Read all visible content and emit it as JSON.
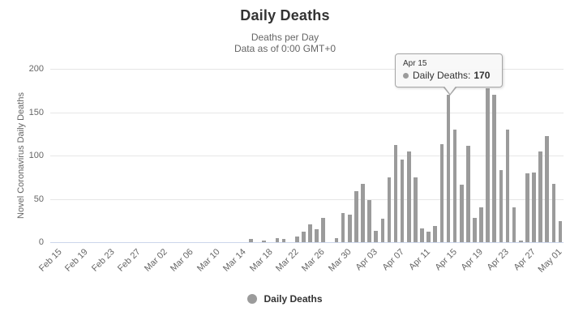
{
  "header": {
    "title": "Daily Deaths",
    "subtitle_line1": "Deaths per Day",
    "subtitle_line2": "Data as of 0:00 GMT+0"
  },
  "y_axis": {
    "title": "Novel Coronavirus Daily Deaths"
  },
  "legend": {
    "label": "Daily Deaths",
    "marker_icon": "circle-marker-icon",
    "marker_color": "#9b9b9b"
  },
  "tooltip": {
    "date": "Apr 15",
    "series_label": "Daily Deaths:",
    "value": "170",
    "dot_color": "#9b9b9b"
  },
  "colors": {
    "bar": "#9b9b9b",
    "gridline": "#e6e6e6",
    "x_axis_line": "#ccd6eb",
    "title_text": "#333333",
    "subtitle_text": "#666666",
    "tick_text": "#666666"
  },
  "chart_data": {
    "type": "bar",
    "title": "Daily Deaths",
    "subtitle": "Deaths per Day — Data as of 0:00 GMT+0",
    "xlabel": "",
    "ylabel": "Novel Coronavirus Daily Deaths",
    "ylim": [
      0,
      200
    ],
    "yticks": [
      0,
      50,
      100,
      150,
      200
    ],
    "grid": true,
    "legend_position": "bottom",
    "legend_entries": [
      "Daily Deaths"
    ],
    "x_label_every": 4,
    "highlighted_point": {
      "category": "Apr 15",
      "value": 170
    },
    "categories": [
      "Feb 15",
      "Feb 16",
      "Feb 17",
      "Feb 18",
      "Feb 19",
      "Feb 20",
      "Feb 21",
      "Feb 22",
      "Feb 23",
      "Feb 24",
      "Feb 25",
      "Feb 26",
      "Feb 27",
      "Feb 28",
      "Feb 29",
      "Mar 01",
      "Mar 02",
      "Mar 03",
      "Mar 04",
      "Mar 05",
      "Mar 06",
      "Mar 07",
      "Mar 08",
      "Mar 09",
      "Mar 10",
      "Mar 11",
      "Mar 12",
      "Mar 13",
      "Mar 14",
      "Mar 15",
      "Mar 16",
      "Mar 17",
      "Mar 18",
      "Mar 19",
      "Mar 20",
      "Mar 21",
      "Mar 22",
      "Mar 23",
      "Mar 24",
      "Mar 25",
      "Mar 26",
      "Mar 27",
      "Mar 28",
      "Mar 29",
      "Mar 30",
      "Mar 31",
      "Apr 01",
      "Apr 02",
      "Apr 03",
      "Apr 04",
      "Apr 05",
      "Apr 06",
      "Apr 07",
      "Apr 08",
      "Apr 09",
      "Apr 10",
      "Apr 11",
      "Apr 12",
      "Apr 13",
      "Apr 14",
      "Apr 15",
      "Apr 16",
      "Apr 17",
      "Apr 18",
      "Apr 19",
      "Apr 20",
      "Apr 21",
      "Apr 22",
      "Apr 23",
      "Apr 24",
      "Apr 25",
      "Apr 26",
      "Apr 27",
      "Apr 28",
      "Apr 29",
      "Apr 30",
      "May 01",
      "May 02"
    ],
    "values": [
      0,
      0,
      0,
      0,
      0,
      0,
      0,
      0,
      0,
      0,
      0,
      0,
      0,
      0,
      0,
      0,
      0,
      0,
      0,
      0,
      0,
      0,
      0,
      0,
      0,
      0,
      0,
      0,
      0,
      0,
      4,
      0,
      2,
      0,
      5,
      4,
      0,
      7,
      12,
      21,
      15,
      28,
      0,
      5,
      34,
      32,
      59,
      67,
      49,
      13,
      27,
      75,
      112,
      95,
      105,
      75,
      16,
      12,
      19,
      113,
      170,
      130,
      66,
      111,
      28,
      40,
      178,
      170,
      83,
      130,
      40,
      2,
      79,
      80,
      105,
      122,
      67,
      24
    ]
  }
}
